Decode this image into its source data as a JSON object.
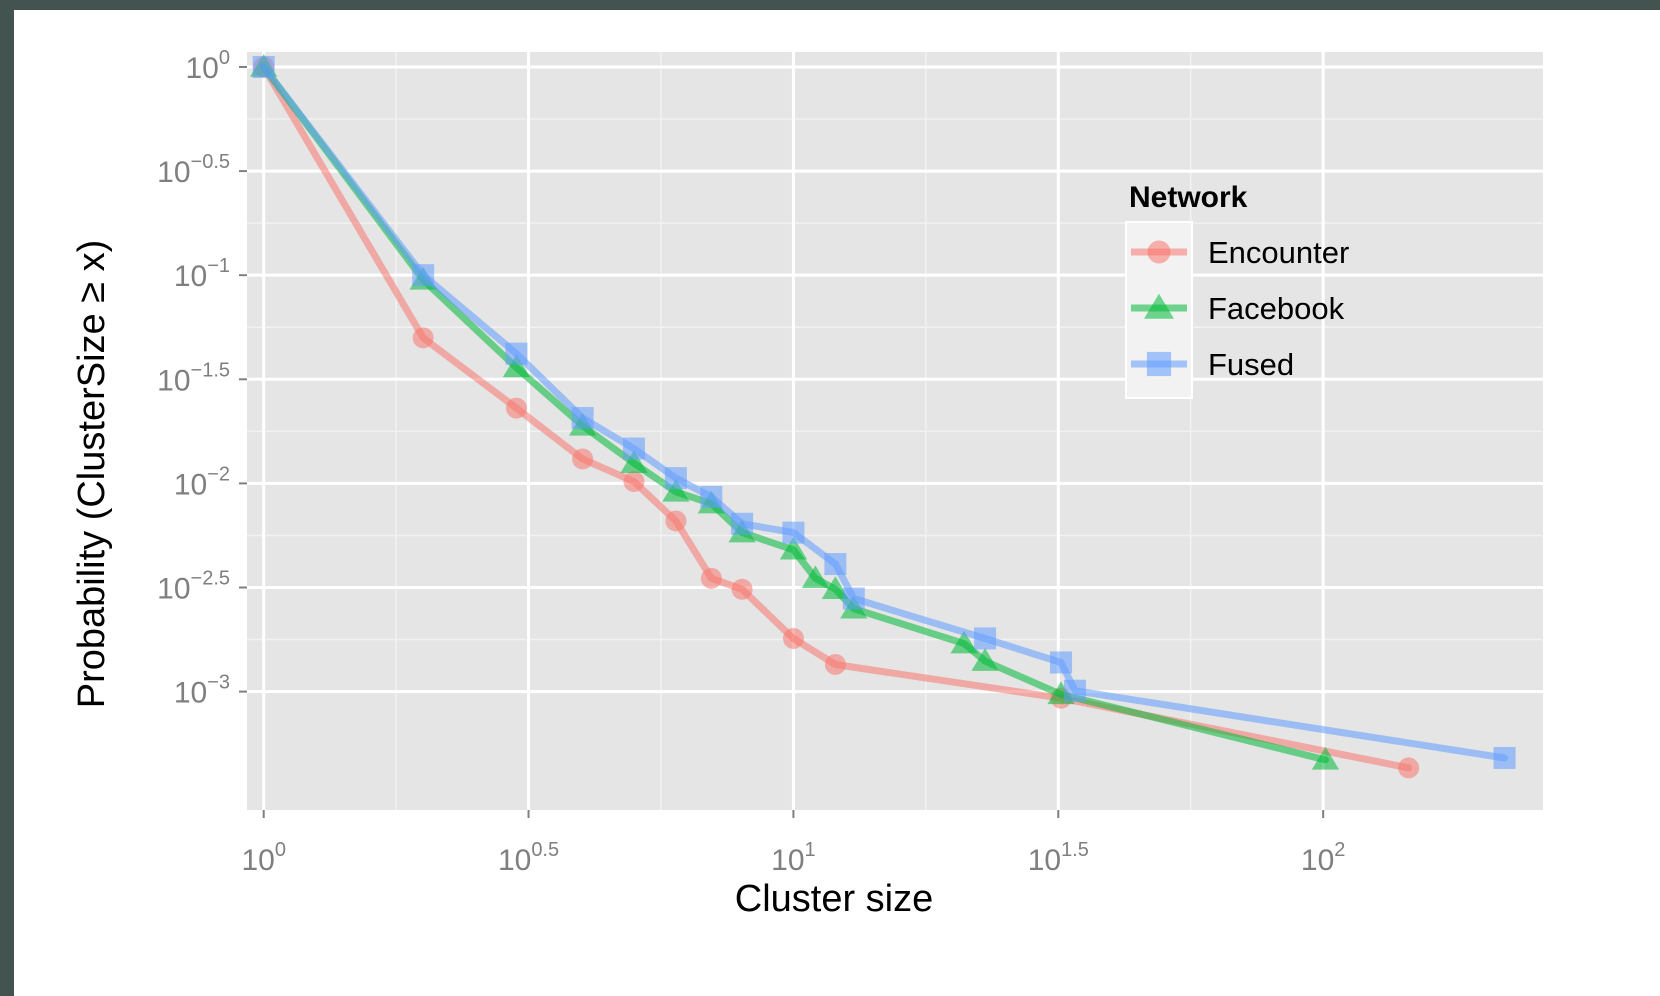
{
  "chart_data": {
    "type": "line",
    "xlabel": "Cluster size",
    "ylabel": "Probability (ClusterSize ≥ x)",
    "x_scale": "log10",
    "y_scale": "log10",
    "xlim": [
      0.93,
      260
    ],
    "ylim": [
      0.00027,
      1.18
    ],
    "grid": true,
    "x_ticks": [
      {
        "base": "10",
        "exp": "0",
        "value": 1
      },
      {
        "base": "10",
        "exp": "0.5",
        "value": 3.162
      },
      {
        "base": "10",
        "exp": "1",
        "value": 10
      },
      {
        "base": "10",
        "exp": "1.5",
        "value": 31.62
      },
      {
        "base": "10",
        "exp": "2",
        "value": 100
      }
    ],
    "y_ticks": [
      {
        "base": "10",
        "exp": "0",
        "value": 1
      },
      {
        "base": "10",
        "exp": "−0.5",
        "value": 0.3162
      },
      {
        "base": "10",
        "exp": "−1",
        "value": 0.1
      },
      {
        "base": "10",
        "exp": "−1.5",
        "value": 0.03162
      },
      {
        "base": "10",
        "exp": "−2",
        "value": 0.01
      },
      {
        "base": "10",
        "exp": "−2.5",
        "value": 0.003162
      },
      {
        "base": "10",
        "exp": "−3",
        "value": 0.001
      }
    ],
    "legend": {
      "title": "Network",
      "position": "right"
    },
    "series": [
      {
        "name": "Encounter",
        "color": "#F8766D",
        "marker": "circle",
        "x": [
          1,
          2,
          3,
          4,
          5,
          6,
          7,
          8,
          10,
          12,
          32,
          145
        ],
        "y": [
          1,
          0.05,
          0.023,
          0.0131,
          0.0102,
          0.0066,
          0.0035,
          0.0031,
          0.0018,
          0.00135,
          0.00093,
          0.00043
        ]
      },
      {
        "name": "Facebook",
        "color": "#00BA38",
        "marker": "triangle",
        "x": [
          1,
          2,
          3,
          4,
          5,
          6,
          7,
          8,
          10,
          11,
          12,
          13,
          21,
          23,
          32,
          101
        ],
        "y": [
          1,
          0.095,
          0.036,
          0.0189,
          0.0125,
          0.0091,
          0.008,
          0.0058,
          0.0048,
          0.0035,
          0.0031,
          0.0025,
          0.0017,
          0.0014,
          0.00097,
          0.00047
        ]
      },
      {
        "name": "Fused",
        "color": "#619CFF",
        "marker": "square",
        "x": [
          1,
          2,
          3,
          4,
          5,
          6,
          7,
          8,
          10,
          12,
          13,
          23,
          32,
          34,
          220
        ],
        "y": [
          1,
          0.1,
          0.042,
          0.0206,
          0.0147,
          0.0106,
          0.0086,
          0.0064,
          0.0058,
          0.0041,
          0.0028,
          0.0018,
          0.00138,
          0.00101,
          0.00048
        ]
      }
    ]
  }
}
